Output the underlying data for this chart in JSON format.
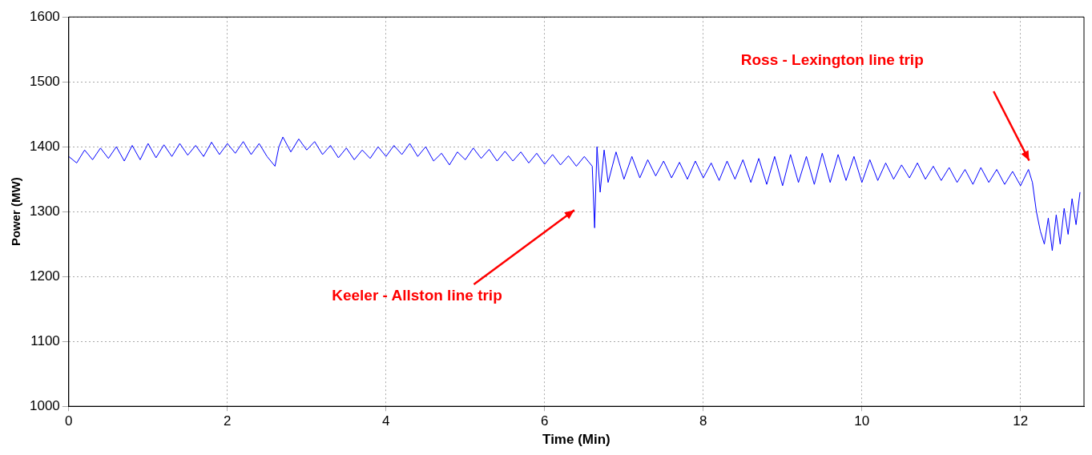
{
  "chart_data": {
    "type": "line",
    "xlabel": "Time (Min)",
    "ylabel": "Power (MW)",
    "xlim": [
      0,
      12.8
    ],
    "xticks": [
      0,
      2,
      4,
      6,
      8,
      10,
      12
    ],
    "ylim": [
      1000,
      1600
    ],
    "yticks": [
      1000,
      1100,
      1200,
      1300,
      1400,
      1500,
      1600
    ],
    "grid": true,
    "legend": false,
    "marker": "none",
    "line_style": "solid",
    "annotations": [
      "Keeler - Allston line trip",
      "Ross - Lexington line trip"
    ],
    "x": [
      0,
      0.1,
      0.2,
      0.3,
      0.4,
      0.5,
      0.6,
      0.7,
      0.8,
      0.9,
      1,
      1.1,
      1.2,
      1.3,
      1.4,
      1.5,
      1.6,
      1.7,
      1.8,
      1.9,
      2,
      2.1,
      2.2,
      2.3,
      2.4,
      2.5,
      2.6,
      2.65,
      2.7,
      2.8,
      2.9,
      3,
      3.1,
      3.2,
      3.3,
      3.4,
      3.5,
      3.6,
      3.7,
      3.8,
      3.9,
      4,
      4.1,
      4.2,
      4.3,
      4.4,
      4.5,
      4.6,
      4.7,
      4.8,
      4.9,
      5,
      5.1,
      5.2,
      5.3,
      5.4,
      5.5,
      5.6,
      5.7,
      5.8,
      5.9,
      6,
      6.1,
      6.2,
      6.3,
      6.4,
      6.5,
      6.6,
      6.63,
      6.66,
      6.7,
      6.75,
      6.8,
      6.9,
      7,
      7.1,
      7.2,
      7.3,
      7.4,
      7.5,
      7.6,
      7.7,
      7.8,
      7.9,
      8,
      8.1,
      8.2,
      8.3,
      8.4,
      8.5,
      8.6,
      8.7,
      8.8,
      8.9,
      9,
      9.1,
      9.2,
      9.3,
      9.4,
      9.5,
      9.6,
      9.7,
      9.8,
      9.9,
      10,
      10.1,
      10.2,
      10.3,
      10.4,
      10.5,
      10.6,
      10.7,
      10.8,
      10.9,
      11,
      11.1,
      11.2,
      11.3,
      11.4,
      11.5,
      11.6,
      11.7,
      11.8,
      11.9,
      12,
      12.1,
      12.15,
      12.2,
      12.25,
      12.3,
      12.35,
      12.4,
      12.45,
      12.5,
      12.55,
      12.6,
      12.65,
      12.7,
      12.75
    ],
    "series": [
      {
        "color": "#0000ff",
        "values": [
          1385,
          1375,
          1395,
          1380,
          1398,
          1382,
          1400,
          1378,
          1402,
          1380,
          1405,
          1383,
          1403,
          1385,
          1405,
          1387,
          1402,
          1385,
          1407,
          1388,
          1405,
          1390,
          1408,
          1388,
          1405,
          1385,
          1370,
          1400,
          1415,
          1392,
          1412,
          1395,
          1408,
          1388,
          1402,
          1383,
          1398,
          1380,
          1395,
          1382,
          1400,
          1385,
          1402,
          1388,
          1405,
          1385,
          1400,
          1378,
          1390,
          1372,
          1392,
          1380,
          1398,
          1382,
          1396,
          1378,
          1393,
          1378,
          1392,
          1375,
          1390,
          1373,
          1388,
          1372,
          1386,
          1370,
          1385,
          1370,
          1275,
          1400,
          1330,
          1395,
          1345,
          1392,
          1350,
          1385,
          1352,
          1380,
          1355,
          1378,
          1352,
          1376,
          1350,
          1378,
          1352,
          1375,
          1348,
          1378,
          1350,
          1380,
          1345,
          1382,
          1342,
          1385,
          1340,
          1388,
          1345,
          1385,
          1342,
          1390,
          1345,
          1388,
          1348,
          1385,
          1345,
          1380,
          1348,
          1375,
          1350,
          1372,
          1352,
          1375,
          1350,
          1370,
          1348,
          1368,
          1345,
          1365,
          1342,
          1368,
          1345,
          1365,
          1342,
          1362,
          1340,
          1365,
          1345,
          1300,
          1270,
          1250,
          1290,
          1240,
          1295,
          1250,
          1305,
          1265,
          1320,
          1280,
          1330
        ]
      }
    ]
  }
}
